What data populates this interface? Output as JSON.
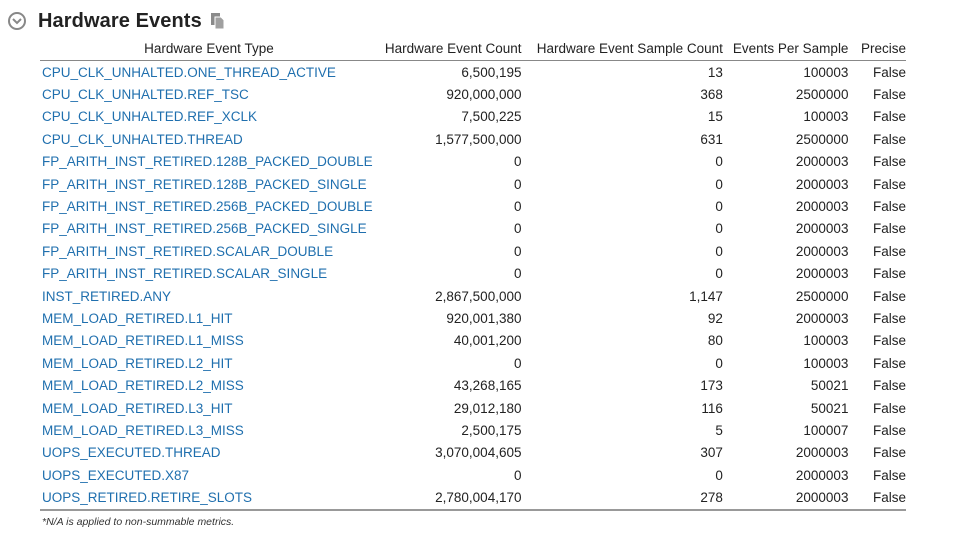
{
  "section": {
    "title": "Hardware Events",
    "footnote": "*N/A is applied to non-summable metrics.",
    "collapse_icon": "chevron-down-circle-icon",
    "copy_icon": "copy-icon"
  },
  "table": {
    "headers": {
      "type": "Hardware Event Type",
      "count": "Hardware Event Count",
      "sample": "Hardware Event Sample Count",
      "per": "Events Per Sample",
      "precise": "Precise"
    },
    "rows": [
      {
        "type": "CPU_CLK_UNHALTED.ONE_THREAD_ACTIVE",
        "count": "6,500,195",
        "sample": "13",
        "per": "100003",
        "precise": "False"
      },
      {
        "type": "CPU_CLK_UNHALTED.REF_TSC",
        "count": "920,000,000",
        "sample": "368",
        "per": "2500000",
        "precise": "False"
      },
      {
        "type": "CPU_CLK_UNHALTED.REF_XCLK",
        "count": "7,500,225",
        "sample": "15",
        "per": "100003",
        "precise": "False"
      },
      {
        "type": "CPU_CLK_UNHALTED.THREAD",
        "count": "1,577,500,000",
        "sample": "631",
        "per": "2500000",
        "precise": "False"
      },
      {
        "type": "FP_ARITH_INST_RETIRED.128B_PACKED_DOUBLE",
        "count": "0",
        "sample": "0",
        "per": "2000003",
        "precise": "False"
      },
      {
        "type": "FP_ARITH_INST_RETIRED.128B_PACKED_SINGLE",
        "count": "0",
        "sample": "0",
        "per": "2000003",
        "precise": "False"
      },
      {
        "type": "FP_ARITH_INST_RETIRED.256B_PACKED_DOUBLE",
        "count": "0",
        "sample": "0",
        "per": "2000003",
        "precise": "False"
      },
      {
        "type": "FP_ARITH_INST_RETIRED.256B_PACKED_SINGLE",
        "count": "0",
        "sample": "0",
        "per": "2000003",
        "precise": "False"
      },
      {
        "type": "FP_ARITH_INST_RETIRED.SCALAR_DOUBLE",
        "count": "0",
        "sample": "0",
        "per": "2000003",
        "precise": "False"
      },
      {
        "type": "FP_ARITH_INST_RETIRED.SCALAR_SINGLE",
        "count": "0",
        "sample": "0",
        "per": "2000003",
        "precise": "False"
      },
      {
        "type": "INST_RETIRED.ANY",
        "count": "2,867,500,000",
        "sample": "1,147",
        "per": "2500000",
        "precise": "False"
      },
      {
        "type": "MEM_LOAD_RETIRED.L1_HIT",
        "count": "920,001,380",
        "sample": "92",
        "per": "2000003",
        "precise": "False"
      },
      {
        "type": "MEM_LOAD_RETIRED.L1_MISS",
        "count": "40,001,200",
        "sample": "80",
        "per": "100003",
        "precise": "False"
      },
      {
        "type": "MEM_LOAD_RETIRED.L2_HIT",
        "count": "0",
        "sample": "0",
        "per": "100003",
        "precise": "False"
      },
      {
        "type": "MEM_LOAD_RETIRED.L2_MISS",
        "count": "43,268,165",
        "sample": "173",
        "per": "50021",
        "precise": "False"
      },
      {
        "type": "MEM_LOAD_RETIRED.L3_HIT",
        "count": "29,012,180",
        "sample": "116",
        "per": "50021",
        "precise": "False"
      },
      {
        "type": "MEM_LOAD_RETIRED.L3_MISS",
        "count": "2,500,175",
        "sample": "5",
        "per": "100007",
        "precise": "False"
      },
      {
        "type": "UOPS_EXECUTED.THREAD",
        "count": "3,070,004,605",
        "sample": "307",
        "per": "2000003",
        "precise": "False"
      },
      {
        "type": "UOPS_EXECUTED.X87",
        "count": "0",
        "sample": "0",
        "per": "2000003",
        "precise": "False"
      },
      {
        "type": "UOPS_RETIRED.RETIRE_SLOTS",
        "count": "2,780,004,170",
        "sample": "278",
        "per": "2000003",
        "precise": "False"
      }
    ]
  }
}
